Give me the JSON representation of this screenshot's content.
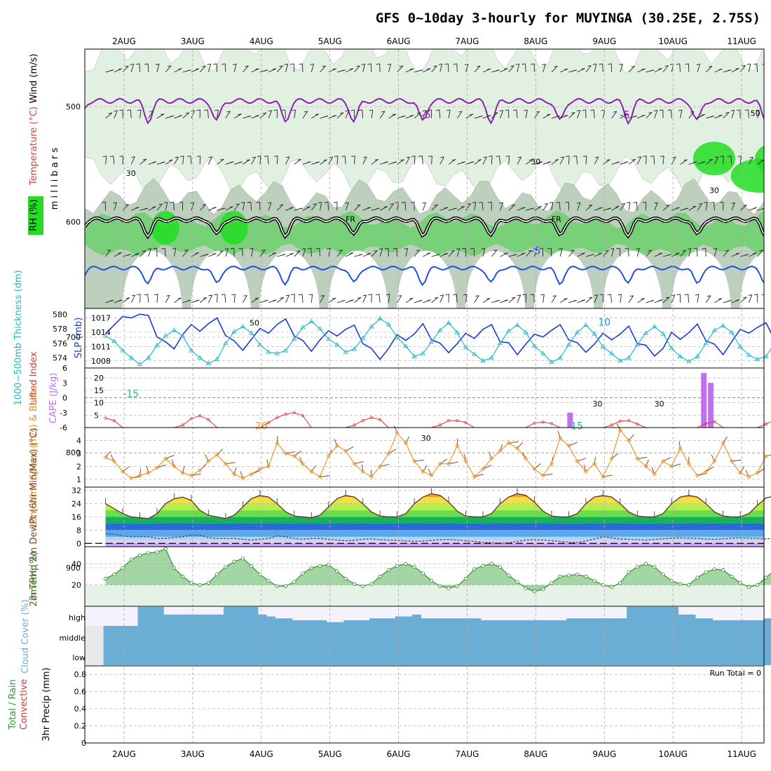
{
  "title": "GFS 0~10day 3-hourly for MUYINGA (30.25E, 2.75S)",
  "dates": [
    "2AUG",
    "3AUG",
    "4AUG",
    "5AUG",
    "6AUG",
    "7AUG",
    "8AUG",
    "9AUG",
    "10AUG",
    "11AUG"
  ],
  "run_total_text": "Run Total = 0",
  "colors": {
    "rh_light": "#e2f0e2",
    "rh_mid": "#bdd0bd",
    "rh_green": "#78d078",
    "rh_bright": "#22dd22",
    "temp_purple": "#8a20b0",
    "temp_blue": "#2050d8",
    "temp_cyan": "#1898e8",
    "temp_green": "#18c080",
    "temp_orange": "#e8a020",
    "temp_dorange": "#e86020",
    "temp_magenta": "#e0206c",
    "slp": "#1a3ccc",
    "thick": "#22b8c8",
    "li": "#dd3333",
    "cape": "#c070f0",
    "wind": "#e8901e",
    "barb": "#7a4a2a",
    "rh2m": "#2a8a2a",
    "cloud": "#6aaed6",
    "cloud_bg": "#f4f2fa"
  },
  "chart_data": [
    {
      "type": "heatmap",
      "panel": "upper-air",
      "ylabel_parts": [
        "Wind (m/s)",
        "Temperature (°C)",
        "RH (%)"
      ],
      "yunit": "m i l l i b a r s",
      "ylim": [
        900,
        450
      ],
      "yticks": [
        500,
        600,
        700,
        800,
        900
      ],
      "isotherm_labels": [
        {
          "text": "-5",
          "x": 4.4,
          "y": 510
        },
        {
          "text": "-5",
          "x": 7.3,
          "y": 510
        },
        {
          "text": "-5",
          "x": 6.0,
          "y": 628
        },
        {
          "text": "0",
          "x": 9.6,
          "y": 558
        },
        {
          "text": "10",
          "x": 7.0,
          "y": 690
        },
        {
          "text": "-15",
          "x": 0.1,
          "y": 752
        },
        {
          "text": "15",
          "x": 6.6,
          "y": 780
        },
        {
          "text": "20",
          "x": 2.0,
          "y": 780
        }
      ],
      "freezing_labels": [
        {
          "text": "FR",
          "x": 3.3
        },
        {
          "text": "FR",
          "x": 6.3
        }
      ],
      "rh_labels": [
        {
          "text": "30",
          "x": 0.1,
          "y": 560
        },
        {
          "text": "50",
          "x": 1.9,
          "y": 690
        },
        {
          "text": "30",
          "x": 4.4,
          "y": 790
        },
        {
          "text": "30",
          "x": 6.0,
          "y": 550
        },
        {
          "text": "30",
          "x": 6.9,
          "y": 760
        },
        {
          "text": "30",
          "x": 7.8,
          "y": 760
        },
        {
          "text": "50",
          "x": 9.2,
          "y": 508
        },
        {
          "text": "30",
          "x": 8.6,
          "y": 575
        }
      ]
    },
    {
      "type": "line",
      "panel": "thickness-slp",
      "ylabel_left": "1000~500mb Thickness (dm)",
      "ylabel_right": "SLP (mb)",
      "left_ticks": [
        574,
        576,
        578,
        580
      ],
      "right_ticks": [
        1008,
        1011,
        1014,
        1017
      ],
      "x_start": -0.27,
      "x_step": 0.125,
      "series": [
        {
          "axis": "right",
          "ylim": [
            1006.5,
            1019
          ],
          "values": [
            1013.7,
            1015.5,
            1017.3,
            1017.0,
            1017.8,
            1017.5,
            1013,
            1012,
            1010.5,
            1013.5,
            1015.6,
            1014.2,
            1015.8,
            1017,
            1013.3,
            1012.2,
            1010.2,
            1012.5,
            1014.8,
            1013.8,
            1015.6,
            1016.8,
            1013.2,
            1012.3,
            1010,
            1012.4,
            1014.3,
            1013.2,
            1014.6,
            1015.5,
            1011.6,
            1010.6,
            1008.3,
            1010.6,
            1013.5,
            1012.3,
            1013.6,
            1015.8,
            1012.4,
            1011.7,
            1009.7,
            1011.6,
            1013.8,
            1012.7,
            1014.6,
            1015.6,
            1012,
            1011.8,
            1009.3,
            1011.5,
            1013.6,
            1013.0,
            1014.4,
            1015.6,
            1012.4,
            1011.8,
            1009.8,
            1011.5,
            1013.8,
            1012.4,
            1013.6,
            1015.3,
            1011.6,
            1011.3,
            1009,
            1010.6,
            1014.0,
            1012.5,
            1013.9,
            1015.7,
            1012.2,
            1011.5,
            1009.3,
            1012,
            1014.6,
            1013.8,
            1015.0,
            1016.0,
            1012.4,
            1012,
            1010
          ]
        },
        {
          "axis": "left",
          "ylim": [
            572.6,
            580.8
          ],
          "values": [
            577.0,
            576.3,
            575.0,
            574.0,
            573.1,
            574.0,
            575.7,
            577.0,
            577.8,
            577.0,
            575.0,
            574.0,
            573.2,
            573.8,
            576,
            577.6,
            578.3,
            577.4,
            575.8,
            574.8,
            574.6,
            575.0,
            576.6,
            578.2,
            579.0,
            578.0,
            576.6,
            575.8,
            574.8,
            575.2,
            576.7,
            578.3,
            579.4,
            578.6,
            576.8,
            575.6,
            574.2,
            574.6,
            576.2,
            577.8,
            578.8,
            577.5,
            575.4,
            574.5,
            573.6,
            574.0,
            576.0,
            577.7,
            578.5,
            577.5,
            575.6,
            574.6,
            573.4,
            574.0,
            575.8,
            577.5,
            578.5,
            577.3,
            575.5,
            574.6,
            573.6,
            574.0,
            575.8,
            577.4,
            578.3,
            577.3,
            575.3,
            574.2,
            573.5,
            574.2,
            576.0,
            577.8,
            578.4,
            577.5,
            575.5,
            574.4,
            573.8,
            574.2,
            576.0,
            577.6,
            578.0
          ]
        }
      ]
    },
    {
      "type": "bar",
      "panel": "lifted-cape",
      "ylabel_left": "Lifted Index",
      "ylabel_right": "CAPE (J/kg)",
      "li_ticks": [
        {
          "value": 6,
          "text": "6"
        },
        {
          "value": 3,
          "text": "3"
        },
        {
          "value": 0,
          "text": "0"
        },
        {
          "value": -3,
          "text": "-3"
        },
        {
          "value": -6,
          "text": "-6"
        }
      ],
      "cape_ticks": [
        5,
        10,
        15,
        20
      ],
      "li_ylim": [
        -6,
        6
      ],
      "cape_ylim": [
        0,
        24
      ],
      "li_x_start": -0.27,
      "li_x_step": 0.125,
      "li_values": [
        4.1,
        4.6,
        6,
        6,
        6,
        6,
        6,
        6,
        6,
        5.5,
        4.2,
        3.6,
        4.4,
        6,
        6,
        6,
        6,
        6,
        6,
        5,
        4.0,
        3.3,
        3.0,
        3.6,
        6,
        6,
        6,
        6,
        6,
        5.5,
        4.6,
        4.0,
        4.4,
        6,
        6,
        6,
        6,
        6,
        6,
        5.5,
        4.6,
        4.6,
        5.0,
        6,
        6,
        6,
        6,
        6,
        6,
        6,
        5.1,
        4.9,
        5.2,
        6,
        6,
        6,
        6,
        6,
        6,
        5.5,
        4.7,
        4.6,
        5.3,
        6,
        6,
        6,
        6,
        6,
        6,
        6,
        5.2,
        4.8,
        6,
        6,
        6,
        6,
        6,
        5.3,
        4.5,
        5.0,
        6,
        6,
        6,
        6,
        6,
        6,
        6,
        6,
        6,
        5.5,
        5.1,
        5.6,
        5.9,
        6,
        6
      ],
      "cape_x": [
        6.5,
        8.45,
        8.55
      ],
      "cape_values": [
        6,
        22,
        18
      ]
    },
    {
      "type": "line",
      "panel": "wind10m",
      "ylabel": "10m Wind Speed (m/s) & Barbs",
      "yticks": [
        1,
        2,
        3,
        4
      ],
      "ylim": [
        0.4,
        5.0
      ],
      "x_start": -0.27,
      "x_step": 0.125,
      "values": [
        2.7,
        2.4,
        1.6,
        1.1,
        1.3,
        1.5,
        1.9,
        2.6,
        2.0,
        1.5,
        1.3,
        1.7,
        2.4,
        2.9,
        2.2,
        1.4,
        1.1,
        1.4,
        1.8,
        2.0,
        3.8,
        3.0,
        2.8,
        2.2,
        1.6,
        1.2,
        2.8,
        3.6,
        3.2,
        2.2,
        1.6,
        1.2,
        2.0,
        3.0,
        4.6,
        3.8,
        2.4,
        1.6,
        1.3,
        2.2,
        2.2,
        3.6,
        2.4,
        1.2,
        1.8,
        2.6,
        3.2,
        3.8,
        3.4,
        2.6,
        1.8,
        1.3,
        2.2,
        4.2,
        3.6,
        2.4,
        1.6,
        2.2,
        1.2,
        2.6,
        4.8,
        4.0,
        2.6,
        2.0,
        1.4,
        2.4,
        2.0,
        3.4,
        2.2,
        1.3,
        1.6,
        2.4,
        3.8,
        2.4,
        1.5,
        1.2,
        1.5,
        2.8,
        3.0,
        3.0,
        4.2,
        2.4,
        1.2,
        1.2,
        1.5,
        3.0
      ]
    },
    {
      "type": "area",
      "panel": "temp2m",
      "ylabel": "2m Temp 2m DewPt (6hr Min/Max) (°C)",
      "yticks": [
        0,
        8,
        16,
        24,
        32
      ],
      "ylim": [
        -2,
        34
      ],
      "x_start": -0.27,
      "x_step": 0.125,
      "temp_values": [
        24,
        21,
        18,
        16,
        15.5,
        15,
        18,
        24,
        27,
        28,
        26,
        20,
        17,
        16,
        15,
        17,
        22,
        27,
        29,
        28,
        24,
        19,
        16.5,
        16,
        15.5,
        17,
        22,
        27,
        29,
        28,
        24,
        19,
        16.5,
        16,
        16,
        18,
        24,
        28,
        30,
        29,
        25,
        19.5,
        16.5,
        16,
        16,
        18,
        24,
        28,
        30,
        29,
        25,
        19.5,
        16.5,
        16,
        16,
        18,
        24,
        28,
        29,
        28,
        24,
        19,
        16.5,
        16,
        16,
        18,
        24,
        28,
        29,
        28,
        24,
        19,
        16.5,
        16,
        16,
        18,
        23,
        27.5,
        28.5,
        28,
        24,
        19,
        16.5,
        16,
        17,
        19.6,
        20.4,
        21
      ],
      "dew_values": [
        6,
        5.5,
        4.5,
        4,
        4,
        4,
        3,
        3,
        3.6,
        4,
        5,
        5,
        3.5,
        3,
        3,
        3,
        2.5,
        2,
        2.5,
        3,
        4.5,
        4,
        3,
        2.5,
        3,
        3,
        2.5,
        2,
        1.6,
        1.8,
        2.5,
        2.8,
        2.2,
        2,
        1.8,
        1.5,
        1.2,
        1.4,
        1.8,
        2.2,
        2.4,
        2,
        1.6,
        1.2,
        0.6,
        0.4,
        0.2,
        0.4,
        1.2,
        2,
        2.2,
        2,
        1.6,
        1.2,
        0.8,
        0.5,
        1.5,
        2.6,
        4,
        3.4,
        2.6,
        2.5,
        2.2,
        2,
        2.4,
        2.8,
        3.2,
        3.4,
        3.2,
        3,
        2.6,
        2.4,
        2.8,
        3.2,
        3.4,
        3.2,
        3,
        2.8,
        3,
        3.2,
        3.4,
        3.6,
        3.8
      ]
    },
    {
      "type": "area",
      "panel": "rh2m",
      "ylabel": "2m RH (%)",
      "yticks": [
        20,
        40
      ],
      "ylim": [
        0,
        56
      ],
      "x_start": -0.27,
      "x_step": 0.125,
      "values": [
        26,
        30,
        36,
        44,
        48,
        50,
        51,
        54,
        36,
        28,
        22,
        20,
        22,
        30,
        37,
        42,
        45,
        38,
        30,
        24,
        19,
        19,
        23,
        31,
        36,
        38,
        39,
        33,
        26,
        21,
        19,
        21,
        28,
        34,
        38,
        40,
        37,
        31,
        24,
        19,
        17,
        19,
        26,
        35,
        38,
        40,
        37,
        29,
        23,
        17,
        14,
        16,
        22,
        28,
        29,
        30,
        28,
        24,
        20,
        18,
        22,
        32,
        37,
        40,
        37,
        30,
        24,
        21,
        20,
        27,
        32,
        35,
        34,
        28,
        22,
        18,
        20,
        27,
        34,
        40,
        41,
        38,
        31,
        24,
        19,
        20,
        30,
        36,
        37,
        34
      ]
    },
    {
      "type": "bar",
      "panel": "cloud-cover",
      "ylabel": "Cloud Cover (%)",
      "level_labels": [
        "high",
        "middle",
        "low"
      ],
      "x_start": -0.3,
      "x_step": 0.125,
      "high_values": [
        0,
        0,
        0,
        0,
        100,
        100,
        100,
        60,
        60,
        60,
        60,
        60,
        60,
        60,
        100,
        100,
        100,
        100,
        60,
        50,
        40,
        40,
        30,
        30,
        30,
        30,
        20,
        20,
        30,
        30,
        30,
        40,
        40,
        40,
        50,
        50,
        60,
        40,
        40,
        40,
        40,
        40,
        40,
        40,
        30,
        30,
        30,
        30,
        30,
        30,
        30,
        30,
        30,
        30,
        40,
        40,
        40,
        40,
        40,
        40,
        40,
        100,
        100,
        100,
        100,
        100,
        100,
        60,
        60,
        40,
        40,
        30,
        30,
        30,
        30,
        30,
        30,
        40,
        40,
        40,
        40,
        40,
        60,
        60,
        40,
        40,
        30,
        30,
        30,
        50,
        50,
        60,
        100,
        100,
        100
      ],
      "mid_values": [
        100,
        100,
        100,
        100,
        100,
        100,
        100,
        100,
        100,
        100,
        100,
        100,
        100,
        100,
        100,
        100,
        100,
        100,
        100,
        100,
        100,
        100,
        100,
        100,
        100,
        100,
        100,
        100,
        100,
        100,
        100,
        100,
        100,
        100,
        100,
        100,
        100,
        100,
        100,
        100,
        100,
        100,
        100,
        100,
        100,
        100,
        100,
        100,
        100,
        100,
        100,
        100,
        100,
        100,
        100,
        100,
        100,
        100,
        100,
        100,
        100,
        100,
        100,
        100,
        100,
        100,
        100,
        100,
        100,
        100,
        100,
        100,
        100,
        100,
        100,
        100,
        100,
        100,
        60,
        60,
        100,
        100,
        100,
        100,
        40,
        40,
        40,
        100,
        100,
        100,
        50,
        50,
        100,
        100,
        100
      ],
      "low_values": [
        100,
        100,
        100,
        100,
        100,
        100,
        100,
        100,
        100,
        100,
        100,
        100,
        100,
        100,
        100,
        100,
        100,
        100,
        100,
        100,
        100,
        100,
        100,
        100,
        100,
        100,
        100,
        100,
        100,
        100,
        100,
        100,
        100,
        100,
        100,
        100,
        100,
        100,
        100,
        100,
        100,
        100,
        100,
        100,
        100,
        100,
        100,
        100,
        100,
        100,
        100,
        100,
        100,
        100,
        100,
        100,
        100,
        100,
        100,
        100,
        100,
        100,
        100,
        100,
        100,
        100,
        100,
        100,
        100,
        100,
        100,
        100,
        100,
        100,
        100,
        100,
        100,
        100,
        100,
        100,
        100,
        100,
        100,
        100,
        100,
        100,
        100,
        100,
        100,
        100,
        100,
        100,
        100,
        100,
        100
      ]
    },
    {
      "type": "bar",
      "panel": "precip",
      "ylabel_left": "3hr Precip (mm)",
      "ylabel_series": [
        "Total / Rain",
        "Convective"
      ],
      "yticks": [
        "0",
        "0.2",
        "0.4",
        "0.6",
        "0.8"
      ],
      "ylim": [
        0,
        0.9
      ],
      "values": []
    }
  ]
}
